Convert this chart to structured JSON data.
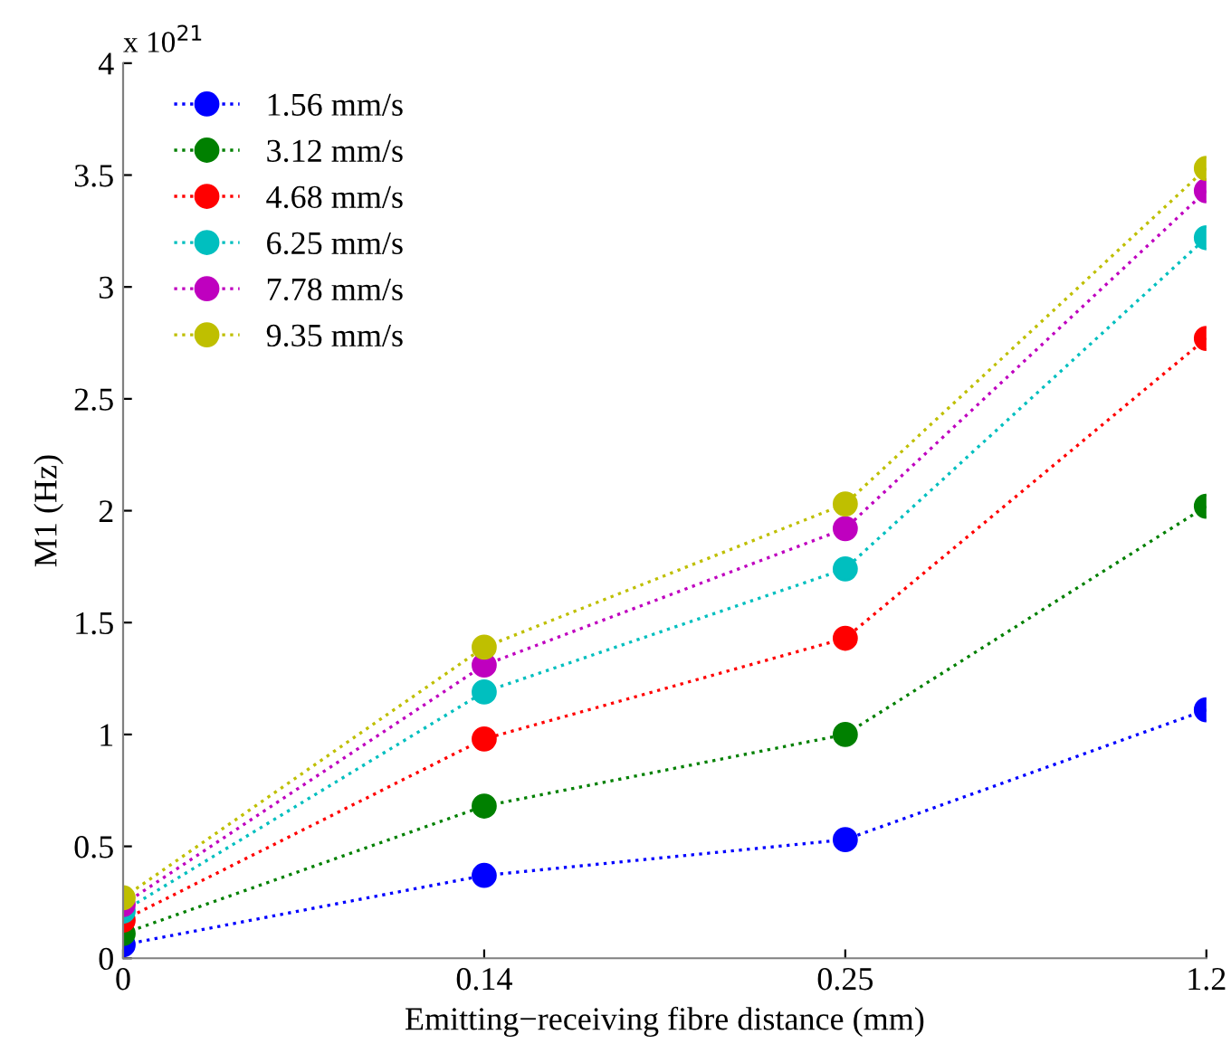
{
  "chart_data": {
    "type": "line",
    "xlabel": "Emitting−receiving fibre distance (mm)",
    "ylabel": "M1 (Hz)",
    "annotations": [
      "x 10$^{21}$"
    ],
    "categories": [
      "0",
      "0.14",
      "0.25",
      "1.2"
    ],
    "series": [
      {
        "name": "1.56 mm/s",
        "color": "#0000ff",
        "values": [
          0.06,
          0.37,
          0.53,
          1.11
        ]
      },
      {
        "name": "3.12 mm/s",
        "color": "#008000",
        "values": [
          0.11,
          0.68,
          1.0,
          2.02
        ]
      },
      {
        "name": "4.68 mm/s",
        "color": "#ff0000",
        "values": [
          0.17,
          0.98,
          1.43,
          2.77
        ]
      },
      {
        "name": "6.25 mm/s",
        "color": "#00bfbf",
        "values": [
          0.21,
          1.19,
          1.74,
          3.22
        ]
      },
      {
        "name": "7.78 mm/s",
        "color": "#bf00bf",
        "values": [
          0.24,
          1.31,
          1.92,
          3.43
        ]
      },
      {
        "name": "9.35 mm/s",
        "color": "#bfbf00",
        "values": [
          0.27,
          1.39,
          2.03,
          3.53
        ]
      }
    ],
    "ylim": [
      0,
      4
    ],
    "yticks": [
      0,
      0.5,
      1,
      1.5,
      2,
      2.5,
      3,
      3.5,
      4
    ],
    "grid": false,
    "legend": "top left",
    "marker": "circle",
    "line_style": "dotted"
  }
}
